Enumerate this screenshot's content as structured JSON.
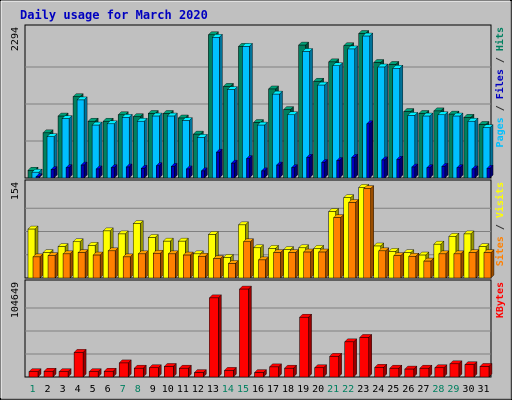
{
  "chart_data": {
    "type": "bar",
    "title": "Daily usage for March 2020",
    "categories": [
      "1",
      "2",
      "3",
      "4",
      "5",
      "6",
      "7",
      "8",
      "9",
      "10",
      "11",
      "12",
      "13",
      "14",
      "15",
      "16",
      "17",
      "18",
      "19",
      "20",
      "21",
      "22",
      "23",
      "24",
      "25",
      "26",
      "27",
      "28",
      "29",
      "30",
      "31"
    ],
    "weekend_days": [
      "1",
      "7",
      "8",
      "14",
      "15",
      "21",
      "22",
      "28",
      "29"
    ],
    "panels": [
      {
        "id": "hits",
        "ymax": 2294,
        "ymax_label": "2294",
        "right_label": [
          {
            "text": "Pages",
            "color": "#00c0ff"
          },
          {
            "text": " / ",
            "color": "#333333"
          },
          {
            "text": "Files",
            "color": "#0000c0"
          },
          {
            "text": " / ",
            "color": "#333333"
          },
          {
            "text": "Hits",
            "color": "#008060"
          }
        ],
        "series": [
          {
            "name": "Hits",
            "color": "#008060",
            "values": [
              120,
              700,
              960,
              1260,
              880,
              880,
              980,
              950,
              1000,
              1000,
              930,
              680,
              2220,
              1420,
              2040,
              860,
              1380,
              1060,
              2060,
              1500,
              1800,
              2050,
              2240,
              1790,
              1760,
              1030,
              1000,
              1040,
              990,
              940,
              830
            ]
          },
          {
            "name": "Files",
            "color": "#00c0ff",
            "values": [
              90,
              640,
              920,
              1210,
              820,
              840,
              940,
              880,
              960,
              960,
              890,
              630,
              2180,
              1370,
              2040,
              820,
              1300,
              980,
              1960,
              1440,
              1740,
              2000,
              2200,
              1720,
              1700,
              970,
              960,
              980,
              960,
              880,
              780
            ]
          },
          {
            "name": "Pages",
            "color": "#0000c0",
            "values": [
              20,
              130,
              160,
              200,
              140,
              160,
              170,
              150,
              190,
              180,
              140,
              110,
              400,
              230,
              300,
              110,
              200,
              160,
              320,
              240,
              270,
              320,
              840,
              280,
              290,
              170,
              160,
              180,
              160,
              140,
              150
            ]
          }
        ]
      },
      {
        "id": "visits",
        "ymax": 154,
        "ymax_label": "154",
        "right_label": [
          {
            "text": "Sites",
            "color": "#ff8000"
          },
          {
            "text": " / ",
            "color": "#333333"
          },
          {
            "text": "Visits",
            "color": "#ffff00"
          }
        ],
        "series": [
          {
            "name": "Visits",
            "color": "#ffff00",
            "values": [
              81,
              42,
              52,
              60,
              54,
              78,
              73,
              90,
              67,
              61,
              61,
              40,
              72,
              34,
              88,
              50,
              49,
              47,
              50,
              49,
              110,
              133,
              150,
              53,
              44,
              42,
              38,
              56,
              69,
              73,
              52
            ]
          },
          {
            "name": "Sites",
            "color": "#ff8000",
            "values": [
              35,
              37,
              40,
              42,
              38,
              45,
              35,
              40,
              41,
              40,
              38,
              36,
              32,
              24,
              60,
              30,
              42,
              42,
              43,
              43,
              100,
              125,
              148,
              45,
              37,
              36,
              28,
              40,
              40,
              42,
              42
            ]
          }
        ]
      },
      {
        "id": "kbytes",
        "ymax": 104649,
        "ymax_label": "104649",
        "right_label": [
          {
            "text": "KBytes",
            "color": "#ff0000"
          }
        ],
        "series": [
          {
            "name": "KBytes",
            "color": "#ff0000",
            "values": [
              6000,
              6500,
              6000,
              28000,
              6000,
              6500,
              16000,
              10000,
              10500,
              12000,
              10000,
              5000,
              90000,
              7500,
              100000,
              5000,
              11500,
              10000,
              68000,
              10500,
              23500,
              40000,
              45000,
              11000,
              10000,
              9000,
              10000,
              10500,
              15000,
              14000,
              12000
            ]
          }
        ]
      }
    ]
  }
}
